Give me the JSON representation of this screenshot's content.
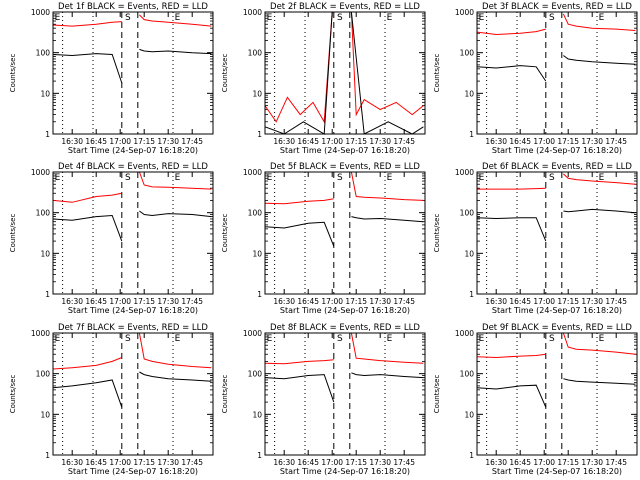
{
  "chart_data": [
    {
      "type": "line",
      "title": "Det 1f BLACK = Events, RED = LLD",
      "ylabel": "Counts/sec",
      "xlabel": "Start Time (24-Sep-07 16:18:20)",
      "yscale": "log",
      "ylim": [
        1,
        1000
      ],
      "yticks": [
        "1",
        "10",
        "100",
        "1000"
      ],
      "xticks": [
        "16:30",
        "16:45",
        "17:00",
        "17:15",
        "17:30",
        "17:45"
      ],
      "markers": [
        "E",
        "S",
        "E"
      ],
      "series": [
        {
          "color": "#ff0000",
          "x": [
            "16:18",
            "16:30",
            "16:45",
            "16:55",
            "17:01",
            "17:02",
            "17:10",
            "17:12",
            "17:15",
            "17:20",
            "17:30",
            "17:45",
            "17:57"
          ],
          "y": [
            480,
            450,
            500,
            560,
            580,
            null,
            null,
            850,
            650,
            600,
            560,
            500,
            450
          ]
        },
        {
          "color": "#000000",
          "x": [
            "16:18",
            "16:30",
            "16:45",
            "16:55",
            "17:01",
            "17:02",
            "17:10",
            "17:12",
            "17:15",
            "17:20",
            "17:30",
            "17:45",
            "17:57"
          ],
          "y": [
            90,
            85,
            95,
            90,
            18,
            null,
            null,
            120,
            110,
            105,
            110,
            100,
            95
          ]
        }
      ]
    },
    {
      "type": "line",
      "title": "Det 2f BLACK = Events, RED = LLD",
      "ylabel": "Counts/sec",
      "xlabel": "Start Time (24-Sep-07 16:18:20)",
      "yscale": "log",
      "ylim": [
        1,
        1000
      ],
      "yticks": [
        "1",
        "10",
        "100",
        "1000"
      ],
      "xticks": [
        "16:30",
        "16:45",
        "17:00",
        "17:15",
        "17:30",
        "17:45"
      ],
      "markers": [
        "E",
        "S",
        "E"
      ],
      "series": [
        {
          "color": "#ff0000",
          "x": [
            "16:18",
            "16:25",
            "16:32",
            "16:40",
            "16:48",
            "16:55",
            "17:00",
            "17:02",
            "17:12",
            "17:15",
            "17:20",
            "17:30",
            "17:40",
            "17:50",
            "17:57"
          ],
          "y": [
            5,
            2,
            8,
            3,
            6,
            2,
            1000,
            null,
            1000,
            3,
            7,
            4,
            6,
            3,
            5
          ]
        },
        {
          "color": "#000000",
          "x": [
            "16:18",
            "16:30",
            "16:42",
            "16:55",
            "17:00",
            "17:02",
            "17:12",
            "17:20",
            "17:35",
            "17:50",
            "17:57"
          ],
          "y": [
            1.5,
            1,
            2,
            1,
            1000,
            null,
            1000,
            1,
            2,
            1,
            1.5
          ]
        }
      ]
    },
    {
      "type": "line",
      "title": "Det 3f BLACK = Events, RED = LLD",
      "ylabel": "Counts/sec",
      "xlabel": "Start Time (24-Sep-07 16:18:20)",
      "yscale": "log",
      "ylim": [
        1,
        1000
      ],
      "yticks": [
        "1",
        "10",
        "100",
        "1000"
      ],
      "xticks": [
        "16:30",
        "16:45",
        "17:00",
        "17:15",
        "17:30",
        "17:45"
      ],
      "markers": [
        "E",
        "S",
        "E"
      ],
      "series": [
        {
          "color": "#ff0000",
          "x": [
            "16:18",
            "16:30",
            "16:45",
            "16:55",
            "17:01",
            "17:02",
            "17:10",
            "17:12",
            "17:15",
            "17:20",
            "17:30",
            "17:45",
            "17:57"
          ],
          "y": [
            320,
            280,
            300,
            330,
            380,
            null,
            null,
            900,
            500,
            450,
            400,
            380,
            350
          ]
        },
        {
          "color": "#000000",
          "x": [
            "16:18",
            "16:30",
            "16:45",
            "16:55",
            "17:01",
            "17:02",
            "17:10",
            "17:12",
            "17:15",
            "17:20",
            "17:30",
            "17:45",
            "17:57"
          ],
          "y": [
            45,
            42,
            48,
            45,
            20,
            null,
            null,
            85,
            70,
            65,
            60,
            55,
            52
          ]
        }
      ]
    },
    {
      "type": "line",
      "title": "Det 4f BLACK = Events, RED = LLD",
      "ylabel": "Counts/sec",
      "xlabel": "Start Time (24-Sep-07 16:18:20)",
      "yscale": "log",
      "ylim": [
        1,
        1000
      ],
      "yticks": [
        "1",
        "10",
        "100",
        "1000"
      ],
      "xticks": [
        "16:30",
        "16:45",
        "17:00",
        "17:15",
        "17:30",
        "17:45"
      ],
      "markers": [
        "E",
        "S",
        "E"
      ],
      "series": [
        {
          "color": "#ff0000",
          "x": [
            "16:18",
            "16:30",
            "16:45",
            "16:55",
            "17:01",
            "17:02",
            "17:10",
            "17:12",
            "17:15",
            "17:20",
            "17:30",
            "17:45",
            "17:57"
          ],
          "y": [
            200,
            180,
            250,
            270,
            300,
            null,
            null,
            1000,
            480,
            430,
            420,
            400,
            380
          ]
        },
        {
          "color": "#000000",
          "x": [
            "16:18",
            "16:30",
            "16:45",
            "16:55",
            "17:01",
            "17:02",
            "17:10",
            "17:12",
            "17:15",
            "17:20",
            "17:30",
            "17:45",
            "17:57"
          ],
          "y": [
            70,
            65,
            80,
            85,
            20,
            null,
            null,
            110,
            90,
            85,
            95,
            90,
            80
          ]
        }
      ]
    },
    {
      "type": "line",
      "title": "Det 5f BLACK = Events, RED = LLD",
      "ylabel": "Counts/sec",
      "xlabel": "Start Time (24-Sep-07 16:18:20)",
      "yscale": "log",
      "ylim": [
        1,
        1000
      ],
      "yticks": [
        "1",
        "10",
        "100",
        "1000"
      ],
      "xticks": [
        "16:30",
        "16:45",
        "17:00",
        "17:15",
        "17:30",
        "17:45"
      ],
      "markers": [
        "E",
        "S",
        "E"
      ],
      "series": [
        {
          "color": "#ff0000",
          "x": [
            "16:18",
            "16:30",
            "16:45",
            "16:55",
            "17:01",
            "17:02",
            "17:10",
            "17:12",
            "17:15",
            "17:20",
            "17:30",
            "17:45",
            "17:57"
          ],
          "y": [
            170,
            165,
            190,
            200,
            220,
            null,
            null,
            1000,
            250,
            240,
            230,
            210,
            200
          ]
        },
        {
          "color": "#000000",
          "x": [
            "16:18",
            "16:30",
            "16:45",
            "16:55",
            "17:01",
            "17:02",
            "17:10",
            "17:12",
            "17:15",
            "17:20",
            "17:30",
            "17:45",
            "17:57"
          ],
          "y": [
            45,
            42,
            55,
            58,
            15,
            null,
            null,
            80,
            75,
            70,
            72,
            65,
            60
          ]
        }
      ]
    },
    {
      "type": "line",
      "title": "Det 6f BLACK = Events, RED = LLD",
      "ylabel": "Counts/sec",
      "xlabel": "Start Time (24-Sep-07 16:18:20)",
      "yscale": "log",
      "ylim": [
        1,
        1000
      ],
      "yticks": [
        "1",
        "10",
        "100",
        "1000"
      ],
      "xticks": [
        "16:30",
        "16:45",
        "17:00",
        "17:15",
        "17:30",
        "17:45"
      ],
      "markers": [
        "E",
        "S",
        "E"
      ],
      "series": [
        {
          "color": "#ff0000",
          "x": [
            "16:18",
            "16:30",
            "16:45",
            "16:55",
            "17:01",
            "17:02",
            "17:10",
            "17:12",
            "17:15",
            "17:20",
            "17:30",
            "17:45",
            "17:57"
          ],
          "y": [
            380,
            380,
            380,
            390,
            400,
            null,
            null,
            900,
            700,
            650,
            600,
            550,
            500
          ]
        },
        {
          "color": "#000000",
          "x": [
            "16:18",
            "16:30",
            "16:45",
            "16:55",
            "17:01",
            "17:02",
            "17:10",
            "17:12",
            "17:15",
            "17:20",
            "17:30",
            "17:45",
            "17:57"
          ],
          "y": [
            75,
            72,
            75,
            75,
            20,
            null,
            null,
            110,
            105,
            110,
            120,
            110,
            100
          ]
        }
      ]
    },
    {
      "type": "line",
      "title": "Det 7f BLACK = Events, RED = LLD",
      "ylabel": "Counts/sec",
      "xlabel": "Start Time (24-Sep-07 16:18:20)",
      "yscale": "log",
      "ylim": [
        1,
        1000
      ],
      "yticks": [
        "1",
        "10",
        "100",
        "1000"
      ],
      "xticks": [
        "16:30",
        "16:45",
        "17:00",
        "17:15",
        "17:30",
        "17:45"
      ],
      "markers": [
        "E",
        "S",
        "E"
      ],
      "series": [
        {
          "color": "#ff0000",
          "x": [
            "16:18",
            "16:30",
            "16:45",
            "16:55",
            "17:01",
            "17:02",
            "17:10",
            "17:12",
            "17:15",
            "17:20",
            "17:30",
            "17:45",
            "17:57"
          ],
          "y": [
            130,
            140,
            160,
            200,
            250,
            null,
            null,
            1000,
            230,
            200,
            170,
            150,
            140
          ]
        },
        {
          "color": "#000000",
          "x": [
            "16:18",
            "16:30",
            "16:45",
            "16:55",
            "17:01",
            "17:02",
            "17:10",
            "17:12",
            "17:15",
            "17:20",
            "17:30",
            "17:45",
            "17:57"
          ],
          "y": [
            45,
            50,
            60,
            70,
            15,
            null,
            null,
            110,
            95,
            85,
            75,
            70,
            65
          ]
        }
      ]
    },
    {
      "type": "line",
      "title": "Det 8f BLACK = Events, RED = LLD",
      "ylabel": "Counts/sec",
      "xlabel": "Start Time (24-Sep-07 16:18:20)",
      "yscale": "log",
      "ylim": [
        1,
        1000
      ],
      "yticks": [
        "1",
        "10",
        "100",
        "1000"
      ],
      "xticks": [
        "16:30",
        "16:45",
        "17:00",
        "17:15",
        "17:30",
        "17:45"
      ],
      "markers": [
        "E",
        "S",
        "E"
      ],
      "series": [
        {
          "color": "#ff0000",
          "x": [
            "16:18",
            "16:30",
            "16:45",
            "16:55",
            "17:01",
            "17:02",
            "17:10",
            "17:12",
            "17:15",
            "17:20",
            "17:30",
            "17:45",
            "17:57"
          ],
          "y": [
            180,
            175,
            200,
            210,
            220,
            null,
            null,
            1000,
            240,
            230,
            210,
            190,
            180
          ]
        },
        {
          "color": "#000000",
          "x": [
            "16:18",
            "16:30",
            "16:45",
            "16:55",
            "17:01",
            "17:02",
            "17:10",
            "17:12",
            "17:15",
            "17:20",
            "17:30",
            "17:45",
            "17:57"
          ],
          "y": [
            80,
            75,
            90,
            95,
            20,
            null,
            null,
            105,
            95,
            90,
            95,
            85,
            80
          ]
        }
      ]
    },
    {
      "type": "line",
      "title": "Det 9f BLACK = Events, RED = LLD",
      "ylabel": "Counts/sec",
      "xlabel": "Start Time (24-Sep-07 16:18:20)",
      "yscale": "log",
      "ylim": [
        1,
        1000
      ],
      "yticks": [
        "1",
        "10",
        "100",
        "1000"
      ],
      "xticks": [
        "16:30",
        "16:45",
        "17:00",
        "17:15",
        "17:30",
        "17:45"
      ],
      "markers": [
        "E",
        "S",
        "E"
      ],
      "series": [
        {
          "color": "#ff0000",
          "x": [
            "16:18",
            "16:30",
            "16:45",
            "16:55",
            "17:01",
            "17:02",
            "17:10",
            "17:12",
            "17:15",
            "17:20",
            "17:30",
            "17:45",
            "17:57"
          ],
          "y": [
            260,
            250,
            270,
            280,
            300,
            null,
            null,
            1000,
            450,
            400,
            380,
            340,
            300
          ]
        },
        {
          "color": "#000000",
          "x": [
            "16:18",
            "16:30",
            "16:45",
            "16:55",
            "17:01",
            "17:02",
            "17:10",
            "17:12",
            "17:15",
            "17:20",
            "17:30",
            "17:45",
            "17:57"
          ],
          "y": [
            45,
            42,
            50,
            52,
            15,
            null,
            null,
            75,
            70,
            65,
            62,
            58,
            55
          ]
        }
      ]
    }
  ]
}
